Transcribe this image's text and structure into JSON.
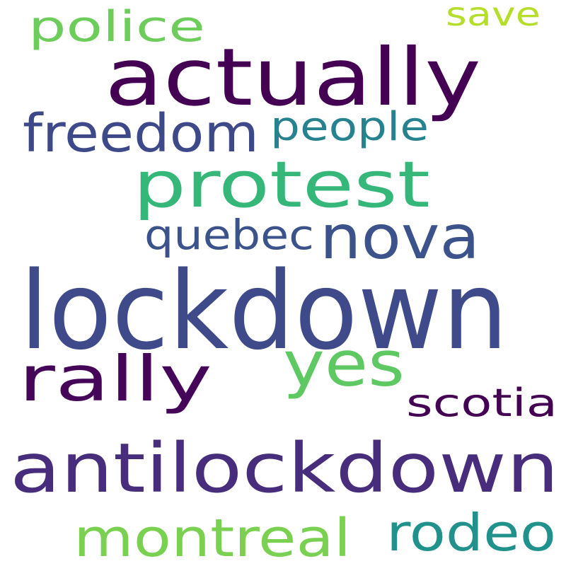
{
  "words": [
    {
      "text": "lockdown",
      "color": "#3e4a89"
    },
    {
      "text": "antilockdown",
      "color": "#472d7b"
    },
    {
      "text": "actually",
      "color": "#440154"
    },
    {
      "text": "protest",
      "color": "#35b779"
    },
    {
      "text": "rally",
      "color": "#450559"
    },
    {
      "text": "nova",
      "color": "#3b528b"
    },
    {
      "text": "yes",
      "color": "#5ec962"
    },
    {
      "text": "freedom",
      "color": "#3e4989"
    },
    {
      "text": "montreal",
      "color": "#7ad151"
    },
    {
      "text": "rodeo",
      "color": "#21918c"
    },
    {
      "text": "police",
      "color": "#6ccd5a"
    },
    {
      "text": "quebec",
      "color": "#3b528b"
    },
    {
      "text": "people",
      "color": "#26828e"
    },
    {
      "text": "scotia",
      "color": "#440154"
    },
    {
      "text": "save",
      "color": "#b5de2b"
    }
  ]
}
